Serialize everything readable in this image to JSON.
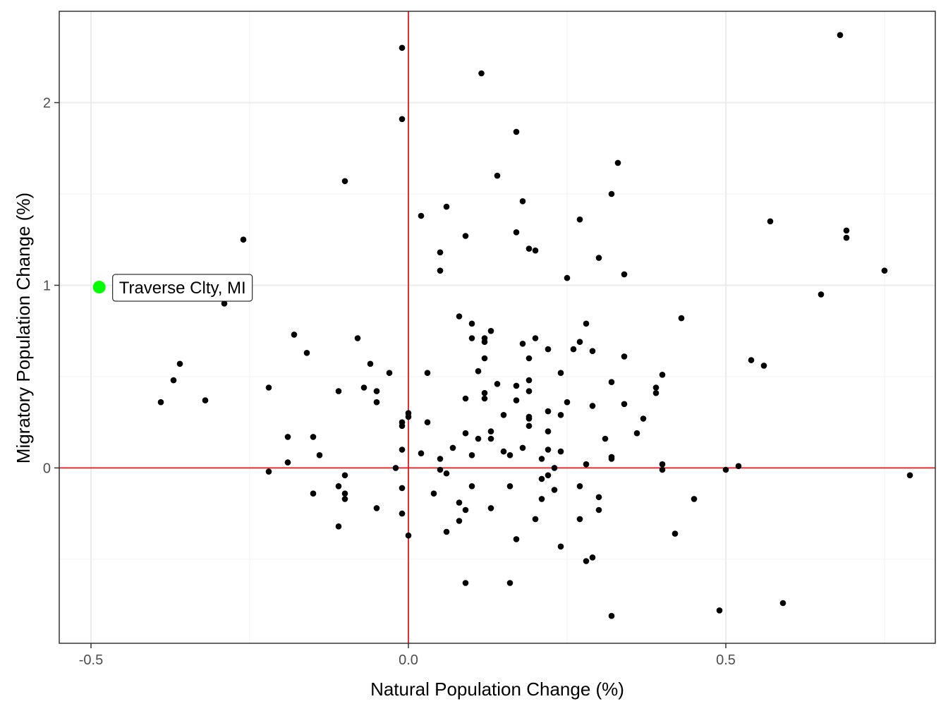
{
  "chart_data": {
    "type": "scatter",
    "xlabel": "Natural Population Change (%)",
    "ylabel": "Migratory Population Change (%)",
    "xlim": [
      -0.55,
      0.83
    ],
    "ylim": [
      -0.96,
      2.5
    ],
    "xticks": [
      -0.5,
      0.0,
      0.5
    ],
    "xtick_labels": [
      "-0.5",
      "0.0",
      "0.5"
    ],
    "yticks": [
      0,
      1,
      2
    ],
    "ytick_labels": [
      "0",
      "1",
      "2"
    ],
    "x_minor_grid": [
      -0.25,
      0.25,
      0.75
    ],
    "y_minor_grid": [
      -0.5,
      0.5,
      1.5
    ],
    "reference_lines": {
      "x": 0,
      "y": 0,
      "color": "#e31a1c"
    },
    "point_color": "#000000",
    "grid": true,
    "theme": "bw",
    "highlight": {
      "label": "Traverse Clty, MI",
      "x": -0.487,
      "y": 0.99,
      "color": "#00ff00"
    },
    "points": [
      [
        -0.01,
        2.3
      ],
      [
        0.115,
        2.16
      ],
      [
        0.68,
        2.37
      ],
      [
        -0.01,
        1.91
      ],
      [
        0.17,
        1.84
      ],
      [
        0.33,
        1.67
      ],
      [
        0.14,
        1.6
      ],
      [
        -0.1,
        1.57
      ],
      [
        0.32,
        1.5
      ],
      [
        0.18,
        1.46
      ],
      [
        0.06,
        1.43
      ],
      [
        0.02,
        1.38
      ],
      [
        0.27,
        1.36
      ],
      [
        0.57,
        1.35
      ],
      [
        0.69,
        1.3
      ],
      [
        0.17,
        1.29
      ],
      [
        0.09,
        1.27
      ],
      [
        0.69,
        1.26
      ],
      [
        -0.26,
        1.25
      ],
      [
        0.19,
        1.2
      ],
      [
        0.2,
        1.19
      ],
      [
        0.05,
        1.18
      ],
      [
        0.3,
        1.15
      ],
      [
        0.05,
        1.08
      ],
      [
        0.75,
        1.08
      ],
      [
        0.34,
        1.06
      ],
      [
        0.25,
        1.04
      ],
      [
        0.65,
        0.95
      ],
      [
        -0.29,
        0.9
      ],
      [
        0.08,
        0.83
      ],
      [
        0.43,
        0.82
      ],
      [
        0.1,
        0.79
      ],
      [
        0.28,
        0.79
      ],
      [
        0.13,
        0.75
      ],
      [
        -0.18,
        0.73
      ],
      [
        -0.08,
        0.71
      ],
      [
        0.1,
        0.71
      ],
      [
        0.12,
        0.71
      ],
      [
        0.2,
        0.71
      ],
      [
        0.12,
        0.69
      ],
      [
        0.27,
        0.69
      ],
      [
        0.18,
        0.68
      ],
      [
        0.22,
        0.65
      ],
      [
        0.26,
        0.65
      ],
      [
        0.29,
        0.64
      ],
      [
        -0.16,
        0.63
      ],
      [
        0.12,
        0.6
      ],
      [
        0.19,
        0.6
      ],
      [
        0.34,
        0.61
      ],
      [
        0.54,
        0.59
      ],
      [
        -0.36,
        0.57
      ],
      [
        -0.06,
        0.57
      ],
      [
        0.56,
        0.56
      ],
      [
        -0.03,
        0.52
      ],
      [
        0.03,
        0.52
      ],
      [
        0.11,
        0.53
      ],
      [
        0.24,
        0.52
      ],
      [
        0.4,
        0.51
      ],
      [
        -0.37,
        0.48
      ],
      [
        0.19,
        0.48
      ],
      [
        0.32,
        0.47
      ],
      [
        0.14,
        0.46
      ],
      [
        -0.22,
        0.44
      ],
      [
        -0.07,
        0.44
      ],
      [
        0.17,
        0.45
      ],
      [
        0.39,
        0.44
      ],
      [
        -0.11,
        0.42
      ],
      [
        -0.05,
        0.42
      ],
      [
        0.19,
        0.42
      ],
      [
        0.12,
        0.41
      ],
      [
        0.39,
        0.41
      ],
      [
        0.09,
        0.38
      ],
      [
        0.12,
        0.38
      ],
      [
        0.17,
        0.37
      ],
      [
        -0.39,
        0.36
      ],
      [
        -0.32,
        0.37
      ],
      [
        -0.05,
        0.36
      ],
      [
        0.25,
        0.36
      ],
      [
        0.34,
        0.35
      ],
      [
        0.29,
        0.34
      ],
      [
        0.0,
        0.3
      ],
      [
        0.22,
        0.31
      ],
      [
        0.0,
        0.28
      ],
      [
        0.15,
        0.29
      ],
      [
        0.19,
        0.28
      ],
      [
        0.24,
        0.29
      ],
      [
        0.37,
        0.27
      ],
      [
        0.19,
        0.27
      ],
      [
        -0.01,
        0.25
      ],
      [
        0.03,
        0.25
      ],
      [
        -0.01,
        0.23
      ],
      [
        0.19,
        0.23
      ],
      [
        0.13,
        0.2
      ],
      [
        0.22,
        0.2
      ],
      [
        0.36,
        0.19
      ],
      [
        0.09,
        0.19
      ],
      [
        -0.19,
        0.17
      ],
      [
        -0.15,
        0.17
      ],
      [
        0.11,
        0.16
      ],
      [
        0.13,
        0.16
      ],
      [
        0.31,
        0.16
      ],
      [
        0.07,
        0.11
      ],
      [
        0.18,
        0.11
      ],
      [
        -0.01,
        0.1
      ],
      [
        0.15,
        0.09
      ],
      [
        0.22,
        0.1
      ],
      [
        0.24,
        0.09
      ],
      [
        0.02,
        0.08
      ],
      [
        0.1,
        0.07
      ],
      [
        0.16,
        0.07
      ],
      [
        -0.14,
        0.07
      ],
      [
        0.32,
        0.06
      ],
      [
        0.05,
        0.05
      ],
      [
        0.21,
        0.05
      ],
      [
        0.32,
        0.05
      ],
      [
        -0.19,
        0.03
      ],
      [
        0.28,
        0.02
      ],
      [
        0.4,
        0.02
      ],
      [
        0.52,
        0.01
      ],
      [
        -0.02,
        0.0
      ],
      [
        0.23,
        0.0
      ],
      [
        0.05,
        -0.01
      ],
      [
        0.4,
        -0.01
      ],
      [
        0.5,
        -0.01
      ],
      [
        -0.22,
        -0.02
      ],
      [
        0.06,
        -0.03
      ],
      [
        -0.1,
        -0.04
      ],
      [
        0.22,
        -0.04
      ],
      [
        0.79,
        -0.04
      ],
      [
        0.21,
        -0.06
      ],
      [
        -0.11,
        -0.1
      ],
      [
        0.1,
        -0.1
      ],
      [
        0.16,
        -0.1
      ],
      [
        0.27,
        -0.1
      ],
      [
        -0.01,
        -0.11
      ],
      [
        0.23,
        -0.12
      ],
      [
        -0.15,
        -0.14
      ],
      [
        -0.1,
        -0.14
      ],
      [
        0.04,
        -0.14
      ],
      [
        -0.1,
        -0.17
      ],
      [
        0.21,
        -0.17
      ],
      [
        0.3,
        -0.16
      ],
      [
        0.45,
        -0.17
      ],
      [
        0.08,
        -0.19
      ],
      [
        -0.05,
        -0.22
      ],
      [
        0.09,
        -0.23
      ],
      [
        0.13,
        -0.22
      ],
      [
        0.3,
        -0.23
      ],
      [
        -0.01,
        -0.25
      ],
      [
        0.08,
        -0.29
      ],
      [
        0.2,
        -0.28
      ],
      [
        0.27,
        -0.28
      ],
      [
        -0.11,
        -0.32
      ],
      [
        0.06,
        -0.35
      ],
      [
        0.0,
        -0.37
      ],
      [
        0.42,
        -0.36
      ],
      [
        0.17,
        -0.39
      ],
      [
        0.24,
        -0.43
      ],
      [
        0.29,
        -0.49
      ],
      [
        0.28,
        -0.51
      ],
      [
        0.09,
        -0.63
      ],
      [
        0.16,
        -0.63
      ],
      [
        0.59,
        -0.74
      ],
      [
        0.49,
        -0.78
      ],
      [
        0.32,
        -0.81
      ]
    ]
  }
}
